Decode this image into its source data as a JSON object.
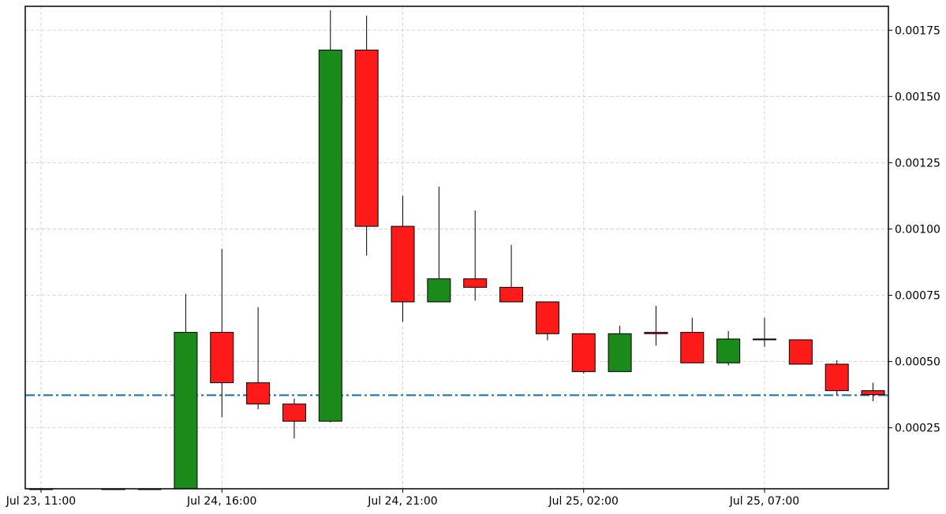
{
  "chart_data": {
    "type": "candlestick",
    "title": "",
    "xlabel": "",
    "ylabel": "",
    "x_ticks": [
      "Jul 23, 11:00",
      "Jul 24, 16:00",
      "Jul 24, 21:00",
      "Jul 25, 02:00",
      "Jul 25, 07:00"
    ],
    "y_ticks": [
      "0.00025",
      "0.00050",
      "0.00075",
      "0.00100",
      "0.00125",
      "0.00150",
      "0.00175"
    ],
    "ylim": [
      2e-05,
      0.00184
    ],
    "grid": true,
    "y_axis_side": "right",
    "reference_line": {
      "value": 0.000373,
      "style": "dash-dot",
      "color": "#1f77b4"
    },
    "colors": {
      "up": "#1a8a1a",
      "down": "#ff1a1a",
      "edge": "#000000"
    },
    "candles": [
      {
        "x": 0,
        "open": 2e-05,
        "high": 2e-05,
        "low": 2e-05,
        "close": 2e-05
      },
      {
        "x": 2,
        "open": 2e-05,
        "high": 2e-05,
        "low": 2e-05,
        "close": 2e-05
      },
      {
        "x": 3,
        "open": 2e-05,
        "high": 2e-05,
        "low": 2e-05,
        "close": 2e-05
      },
      {
        "x": 4,
        "open": 2e-05,
        "high": 0.000755,
        "low": 2e-05,
        "close": 0.00061
      },
      {
        "x": 5,
        "open": 0.00061,
        "high": 0.000925,
        "low": 0.00029,
        "close": 0.00042
      },
      {
        "x": 6,
        "open": 0.00042,
        "high": 0.000705,
        "low": 0.00032,
        "close": 0.00034
      },
      {
        "x": 7,
        "open": 0.00034,
        "high": 0.00036,
        "low": 0.00021,
        "close": 0.000275
      },
      {
        "x": 8,
        "open": 0.000275,
        "high": 0.001825,
        "low": 0.00027,
        "close": 0.001675
      },
      {
        "x": 9,
        "open": 0.001675,
        "high": 0.001805,
        "low": 0.0009,
        "close": 0.00101
      },
      {
        "x": 10,
        "open": 0.00101,
        "high": 0.001125,
        "low": 0.00065,
        "close": 0.000725
      },
      {
        "x": 11,
        "open": 0.000725,
        "high": 0.00116,
        "low": 0.000725,
        "close": 0.000812
      },
      {
        "x": 12,
        "open": 0.000812,
        "high": 0.00107,
        "low": 0.00073,
        "close": 0.00078
      },
      {
        "x": 13,
        "open": 0.00078,
        "high": 0.00094,
        "low": 0.000725,
        "close": 0.000725
      },
      {
        "x": 14,
        "open": 0.000725,
        "high": 0.000725,
        "low": 0.00058,
        "close": 0.000605
      },
      {
        "x": 15,
        "open": 0.000605,
        "high": 0.000605,
        "low": 0.000455,
        "close": 0.000462
      },
      {
        "x": 16,
        "open": 0.000462,
        "high": 0.000635,
        "low": 0.000462,
        "close": 0.000605
      },
      {
        "x": 17,
        "open": 0.00061,
        "high": 0.00071,
        "low": 0.00056,
        "close": 0.000605
      },
      {
        "x": 18,
        "open": 0.00061,
        "high": 0.000665,
        "low": 0.000495,
        "close": 0.000495
      },
      {
        "x": 19,
        "open": 0.000495,
        "high": 0.000615,
        "low": 0.000485,
        "close": 0.000585
      },
      {
        "x": 20,
        "open": 0.000585,
        "high": 0.000665,
        "low": 0.000555,
        "close": 0.000582
      },
      {
        "x": 21,
        "open": 0.000582,
        "high": 0.000582,
        "low": 0.00049,
        "close": 0.00049
      },
      {
        "x": 22,
        "open": 0.00049,
        "high": 0.000505,
        "low": 0.000375,
        "close": 0.00039
      },
      {
        "x": 23,
        "open": 0.00039,
        "high": 0.00042,
        "low": 0.00035,
        "close": 0.000375
      }
    ]
  }
}
